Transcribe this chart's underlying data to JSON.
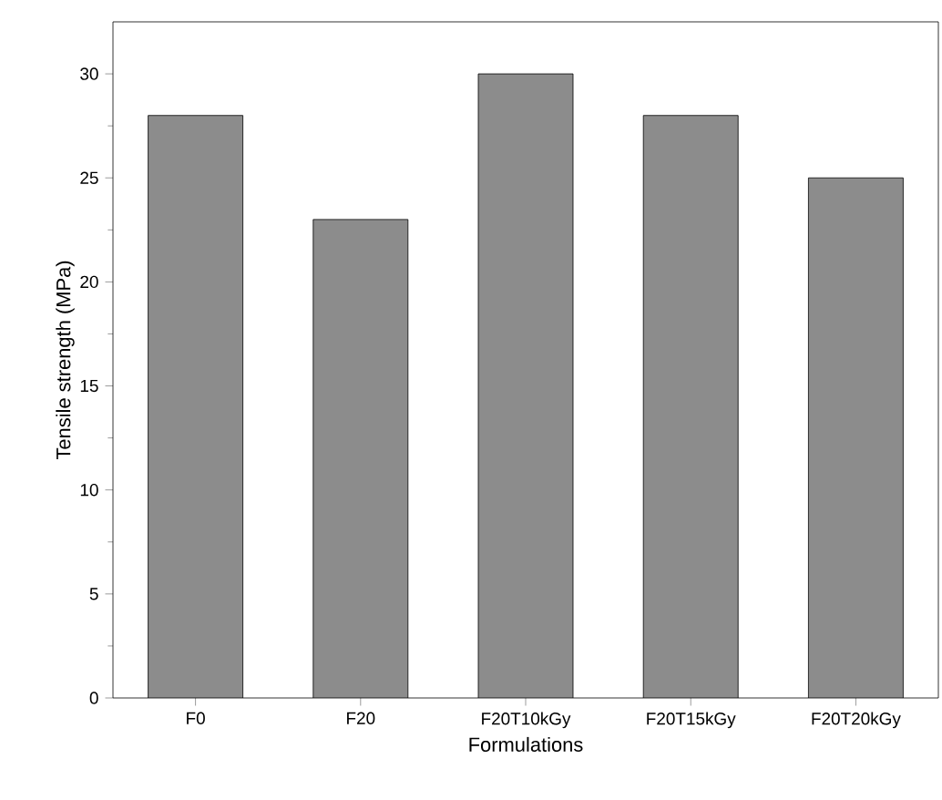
{
  "chart_data": {
    "type": "bar",
    "xlabel": "Formulations",
    "ylabel": "Tensile strength (MPa)",
    "categories": [
      "F0",
      "F20",
      "F20T10kGy",
      "F20T15kGy",
      "F20T20kGy"
    ],
    "values": [
      28,
      23,
      30,
      28,
      25
    ],
    "color": "#8c8c8c",
    "ylim": [
      0,
      32.5
    ],
    "yticks": [
      0,
      5,
      10,
      15,
      20,
      25,
      30
    ]
  }
}
